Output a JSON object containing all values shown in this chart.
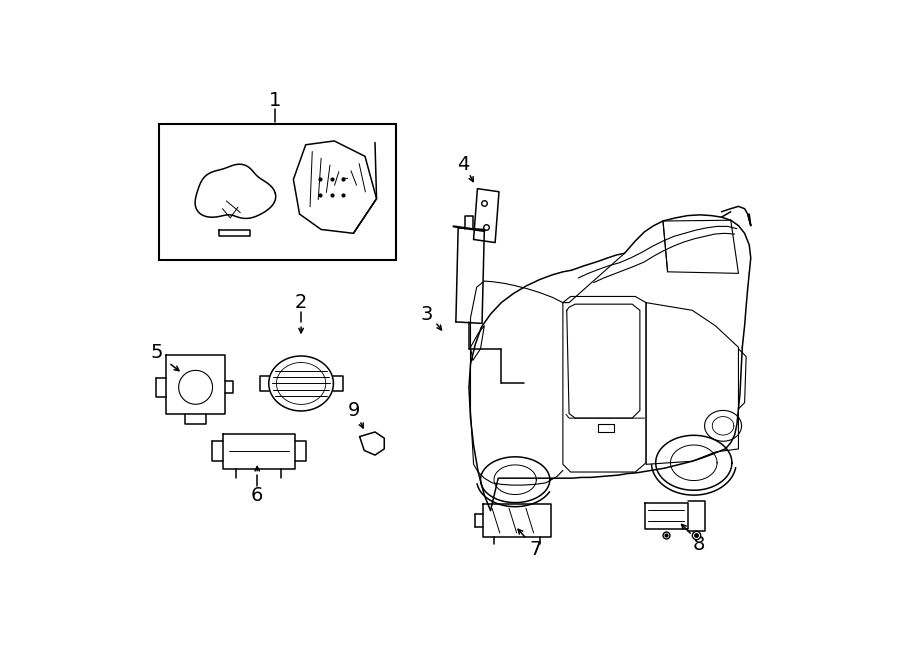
{
  "background_color": "#ffffff",
  "figsize": [
    9.0,
    6.61
  ],
  "dpi": 100,
  "line_color": "#000000",
  "line_width": 1.1,
  "label_fontsize": 13
}
